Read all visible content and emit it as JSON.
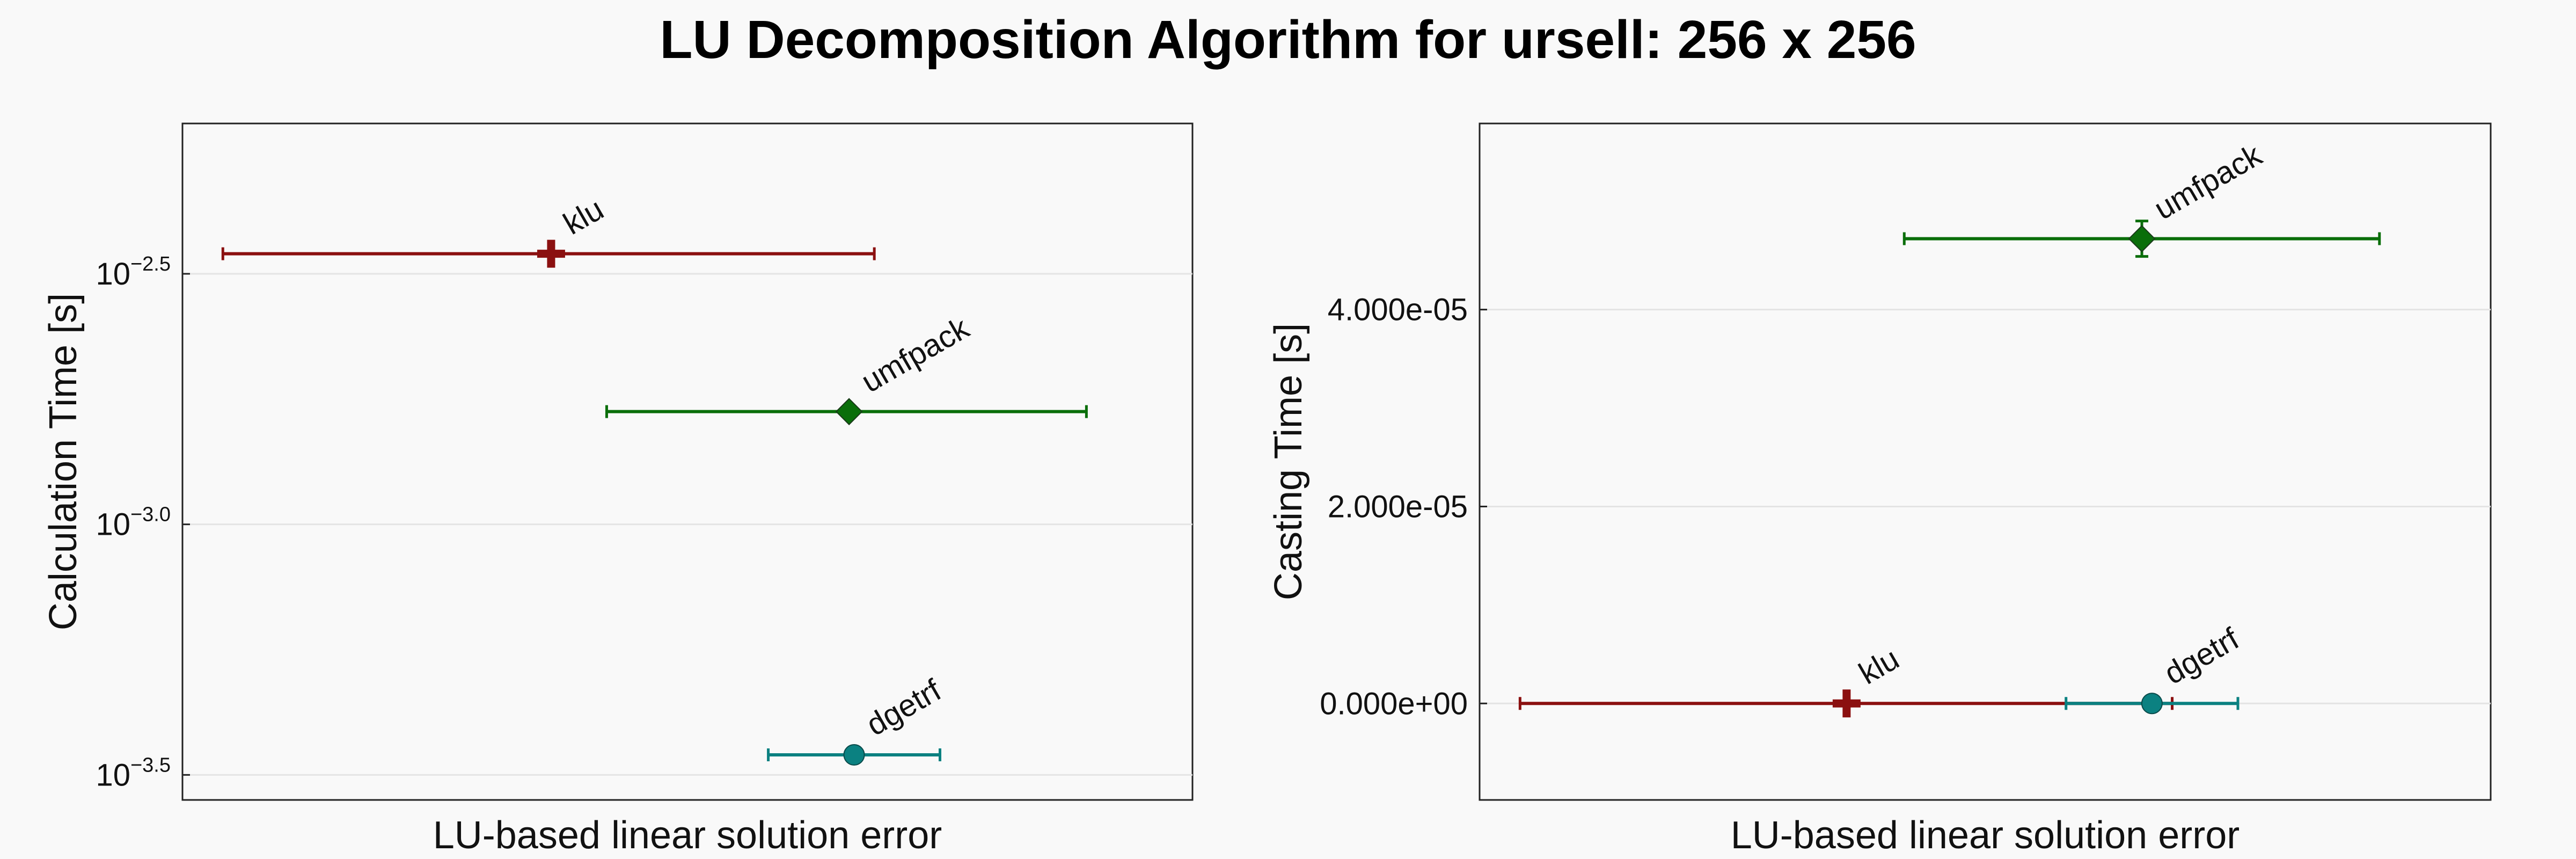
{
  "title": "LU Decomposition Algorithm for ursell: 256 x 256",
  "chart_data": [
    {
      "type": "scatter",
      "subtype": "horizontal-errorbar",
      "xlabel": "LU-based linear solution error",
      "ylabel": "Calculation Time [s]",
      "yscale": "log10",
      "yticks": [
        {
          "value": -2.5,
          "base": "10",
          "exp": "−2.5"
        },
        {
          "value": -3.0,
          "base": "10",
          "exp": "−3.0"
        },
        {
          "value": -3.5,
          "base": "10",
          "exp": "−3.5"
        }
      ],
      "ylim": [
        -3.55,
        -2.2
      ],
      "xlim": [
        0,
        1
      ],
      "grid": true,
      "series": [
        {
          "name": "klu",
          "color": "#8b1010",
          "marker": "cross",
          "x": 0.365,
          "x_lo": 0.04,
          "x_hi": 0.685,
          "y": -2.46,
          "y_err": 0.0
        },
        {
          "name": "umfpack",
          "color": "#0a6e0a",
          "marker": "diamond",
          "x": 0.66,
          "x_lo": 0.42,
          "x_hi": 0.895,
          "y": -2.775,
          "y_err": 0.0
        },
        {
          "name": "dgetrf",
          "color": "#0b8181",
          "marker": "circle",
          "x": 0.665,
          "x_lo": 0.58,
          "x_hi": 0.75,
          "y": -3.46,
          "y_err": 0.0
        }
      ]
    },
    {
      "type": "scatter",
      "subtype": "horizontal-errorbar",
      "xlabel": "LU-based linear solution error",
      "ylabel": "Casting Time [s]",
      "yscale": "linear",
      "yticks": [
        {
          "value": 4e-05,
          "label": "4.000e-05"
        },
        {
          "value": 2e-05,
          "label": "2.000e-05"
        },
        {
          "value": 0.0,
          "label": "0.000e+00"
        }
      ],
      "ylim": [
        -9.8e-06,
        5.89e-05
      ],
      "xlim": [
        0,
        1
      ],
      "grid": true,
      "series": [
        {
          "name": "umfpack",
          "color": "#0a6e0a",
          "marker": "diamond",
          "x": 0.655,
          "x_lo": 0.42,
          "x_hi": 0.89,
          "y": 4.72e-05,
          "y_err": 1.8e-06
        },
        {
          "name": "klu",
          "color": "#8b1010",
          "marker": "cross",
          "x": 0.363,
          "x_lo": 0.04,
          "x_hi": 0.685,
          "y": 0.0,
          "y_err": 0.0
        },
        {
          "name": "dgetrf",
          "color": "#0b8181",
          "marker": "circle",
          "x": 0.665,
          "x_lo": 0.58,
          "x_hi": 0.75,
          "y": 0.0,
          "y_err": 0.0
        }
      ]
    }
  ]
}
